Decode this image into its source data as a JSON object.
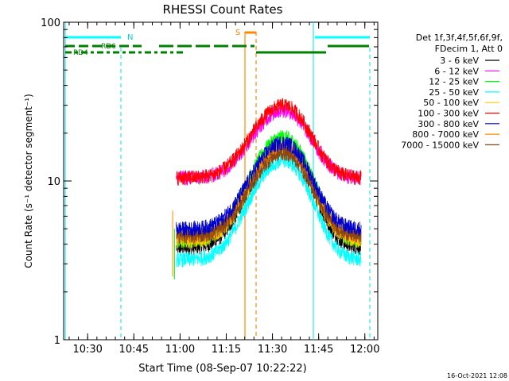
{
  "chart_data": {
    "type": "line",
    "title": "RHESSI Count Rates",
    "xlabel": "Start Time (08-Sep-07 10:22:22)",
    "ylabel": "Count Rate (s⁻¹ detector segment⁻¹)",
    "yscale": "log",
    "ylim": [
      1,
      100
    ],
    "xlim_minutes": [
      10.37,
      12.07
    ],
    "x_ticks": [
      "10:30",
      "10:45",
      "11:00",
      "11:15",
      "11:30",
      "11:45",
      "12:00"
    ],
    "x_tick_minutes": [
      10.5,
      10.75,
      11.0,
      11.25,
      11.5,
      11.75,
      12.0
    ],
    "y_ticks": [
      "1",
      "10",
      "100"
    ],
    "y_tick_values": [
      1,
      10,
      100
    ],
    "grid": false,
    "legend_position": "right",
    "legend_header": [
      "Det 1f,3f,4f,5f,6f,9f,",
      "FDecim 1, Att 0"
    ],
    "series": [
      {
        "name": "3 - 6 keV",
        "color": "#000000",
        "base": 3.8,
        "peak": 16.0
      },
      {
        "name": "6 - 12 keV",
        "color": "#ff00ff",
        "base": 10.5,
        "peak": 28.0
      },
      {
        "name": "12 - 25 keV",
        "color": "#00ff00",
        "base": 4.2,
        "peak": 19.0
      },
      {
        "name": "25 - 50 keV",
        "color": "#00ffff",
        "base": 3.2,
        "peak": 13.5
      },
      {
        "name": "50 - 100 keV",
        "color": "#ffcc00",
        "base": 4.2,
        "peak": 16.0
      },
      {
        "name": "100 - 300 keV",
        "color": "#ff0000",
        "base": 10.5,
        "peak": 30.0
      },
      {
        "name": "300 - 800 keV",
        "color": "#0000cc",
        "base": 5.0,
        "peak": 17.5
      },
      {
        "name": "800 - 7000 keV",
        "color": "#ff8800",
        "base": 4.5,
        "peak": 16.5
      },
      {
        "name": "7000 - 15000 keV",
        "color": "#8b4513",
        "base": 4.5,
        "peak": 15.0
      }
    ],
    "annotations": {
      "night_label": "N",
      "saa_label": "S",
      "rd6_label": "RD6",
      "rd4_label": "RD4"
    }
  },
  "footer_date": "16-Oct-2021 12:08"
}
